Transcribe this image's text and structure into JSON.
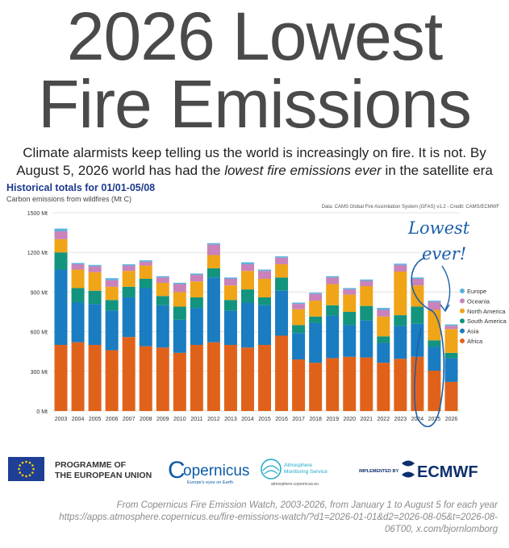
{
  "title_line1": "2026 Lowest",
  "title_line2": "Fire Emissions",
  "subtitle_line1": "Climate alarmists keep telling us the world is increasingly on fire. It is not. By",
  "subtitle_line2_pre": "August 5, 2026 world has had the ",
  "subtitle_line2_em": "lowest fire emissions ever",
  "subtitle_line2_post": " in the satellite era",
  "chart_title": "Historical totals for 01/01-05/08",
  "chart_unit": "Carbon emissions from wildfires (Mt C)",
  "chart_source": "Data: CAMS Global Fire Assimilation System (GFAS) v1.2 - Credit: CAMS/ECMWF",
  "annotation": [
    "Lowest",
    "ever!"
  ],
  "logos": {
    "eu_line1": "PROGRAMME OF",
    "eu_line2": "THE EUROPEAN UNION",
    "copernicus": "opernicus",
    "copernicus_c": "C",
    "copernicus_tag": "Europe's eyes on Earth",
    "cams_line1": "Atmosphere",
    "cams_line2": "Monitoring Service",
    "cams_url": "atmosphere.copernicus.eu",
    "implemented": "IMPLEMENTED BY",
    "ecmwf": "ECMWF"
  },
  "footer_line1": "From Copernicus Fire Emission Watch, 2003-2026, from January 1 to August 5 for each year",
  "footer_line2": "https://apps.atmosphere.copernicus.eu/fire-emissions-watch/?d1=2026-01-01&d2=2026-08-05&t=2026-08-",
  "footer_line3": "06T00, x.com/bjornlomborg",
  "chart_data": {
    "type": "bar",
    "stacked": true,
    "title": "Historical totals for 01/01-05/08",
    "ylabel": "Carbon emissions from wildfires (Mt C)",
    "ylim": [
      0,
      1500
    ],
    "yticks": [
      0,
      300,
      600,
      900,
      1200,
      1500
    ],
    "ytick_labels": [
      "0 Mt",
      "300 Mt",
      "600 Mt",
      "900 Mt",
      "1200 Mt",
      "1500 Mt"
    ],
    "grid": true,
    "legend_position": "right",
    "categories": [
      "2003",
      "2004",
      "2005",
      "2006",
      "2007",
      "2008",
      "2009",
      "2010",
      "2011",
      "2012",
      "2013",
      "2014",
      "2015",
      "2016",
      "2017",
      "2018",
      "2019",
      "2020",
      "2021",
      "2022",
      "2023",
      "2024",
      "2025",
      "2026"
    ],
    "series": [
      {
        "name": "Africa",
        "color": "#e0621a",
        "values": [
          500,
          520,
          500,
          460,
          560,
          490,
          480,
          440,
          500,
          520,
          500,
          480,
          500,
          570,
          390,
          365,
          400,
          410,
          405,
          365,
          395,
          410,
          305,
          220
        ]
      },
      {
        "name": "Asia",
        "color": "#1a7cc1",
        "values": [
          570,
          300,
          310,
          300,
          300,
          440,
          320,
          250,
          280,
          490,
          260,
          340,
          300,
          340,
          200,
          300,
          320,
          240,
          280,
          150,
          250,
          250,
          180,
          180
        ]
      },
      {
        "name": "South America",
        "color": "#12947f",
        "values": [
          130,
          110,
          100,
          80,
          80,
          70,
          70,
          100,
          80,
          70,
          80,
          100,
          60,
          100,
          60,
          50,
          80,
          100,
          110,
          50,
          80,
          130,
          50,
          40
        ]
      },
      {
        "name": "North America",
        "color": "#f0a418",
        "values": [
          100,
          140,
          140,
          100,
          120,
          100,
          100,
          110,
          120,
          100,
          110,
          140,
          140,
          100,
          120,
          120,
          160,
          130,
          150,
          150,
          330,
          160,
          230,
          180
        ]
      },
      {
        "name": "Oceania",
        "color": "#c982ba",
        "values": [
          60,
          40,
          45,
          50,
          40,
          30,
          40,
          60,
          50,
          80,
          50,
          50,
          60,
          50,
          40,
          50,
          50,
          40,
          40,
          50,
          50,
          50,
          60,
          25
        ]
      },
      {
        "name": "Europe",
        "color": "#5ab1dd",
        "values": [
          20,
          10,
          10,
          15,
          10,
          10,
          10,
          10,
          10,
          10,
          10,
          15,
          10,
          10,
          10,
          10,
          10,
          10,
          10,
          15,
          10,
          10,
          10,
          10
        ]
      }
    ]
  }
}
